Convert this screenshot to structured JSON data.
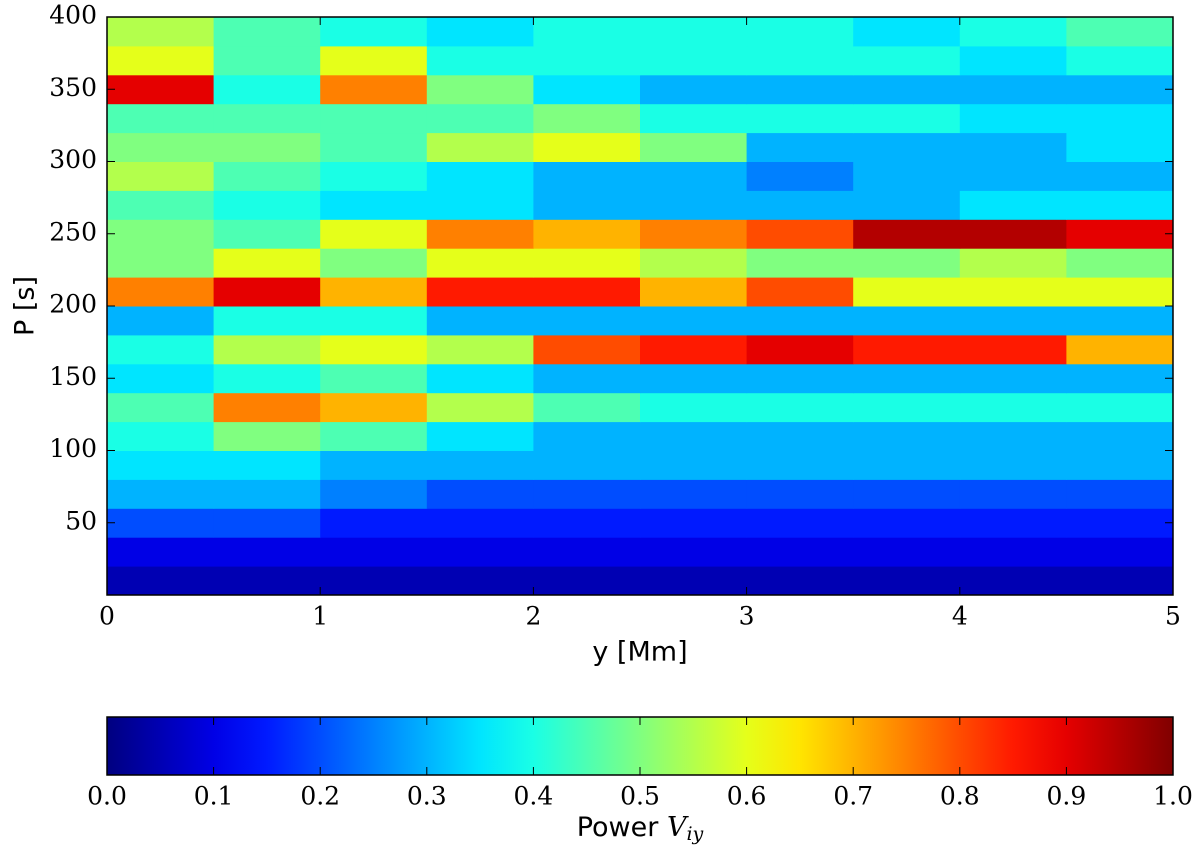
{
  "chart_data": {
    "type": "heatmap",
    "xlabel": "y [Mm]",
    "ylabel": "P [s]",
    "xlim": [
      0,
      5
    ],
    "xticks": [
      0,
      1,
      2,
      3,
      4,
      5
    ],
    "ylim": [
      0,
      400
    ],
    "yticks": [
      50,
      100,
      150,
      200,
      250,
      300,
      350,
      400
    ],
    "colormap": "jet",
    "x_bins": [
      0,
      0.5,
      1,
      1.5,
      2,
      2.5,
      3,
      3.5,
      4,
      4.5,
      5
    ],
    "y_bins": [
      0,
      20,
      40,
      60,
      80,
      100,
      120,
      140,
      160,
      180,
      200,
      220,
      240,
      260,
      280,
      300,
      320,
      340,
      360,
      380,
      400
    ],
    "z": [
      [
        0.05,
        0.05,
        0.05,
        0.05,
        0.05,
        0.05,
        0.05,
        0.05,
        0.05,
        0.05
      ],
      [
        0.1,
        0.1,
        0.1,
        0.1,
        0.1,
        0.1,
        0.1,
        0.1,
        0.1,
        0.1
      ],
      [
        0.2,
        0.2,
        0.15,
        0.15,
        0.15,
        0.15,
        0.15,
        0.15,
        0.15,
        0.15
      ],
      [
        0.3,
        0.3,
        0.25,
        0.2,
        0.2,
        0.2,
        0.2,
        0.2,
        0.2,
        0.2
      ],
      [
        0.35,
        0.35,
        0.3,
        0.3,
        0.3,
        0.3,
        0.3,
        0.3,
        0.3,
        0.3
      ],
      [
        0.4,
        0.5,
        0.45,
        0.35,
        0.3,
        0.3,
        0.3,
        0.3,
        0.3,
        0.3
      ],
      [
        0.45,
        0.75,
        0.7,
        0.55,
        0.45,
        0.4,
        0.4,
        0.4,
        0.4,
        0.4
      ],
      [
        0.35,
        0.4,
        0.45,
        0.35,
        0.3,
        0.3,
        0.3,
        0.3,
        0.3,
        0.3
      ],
      [
        0.4,
        0.55,
        0.6,
        0.55,
        0.8,
        0.85,
        0.9,
        0.85,
        0.85,
        0.7
      ],
      [
        0.3,
        0.4,
        0.4,
        0.3,
        0.3,
        0.3,
        0.3,
        0.3,
        0.3,
        0.3
      ],
      [
        0.75,
        0.9,
        0.7,
        0.85,
        0.85,
        0.7,
        0.8,
        0.6,
        0.6,
        0.6
      ],
      [
        0.5,
        0.6,
        0.5,
        0.6,
        0.6,
        0.55,
        0.5,
        0.5,
        0.55,
        0.5
      ],
      [
        0.5,
        0.45,
        0.6,
        0.75,
        0.7,
        0.75,
        0.8,
        0.95,
        0.95,
        0.9
      ],
      [
        0.45,
        0.4,
        0.35,
        0.35,
        0.3,
        0.3,
        0.3,
        0.3,
        0.35,
        0.35
      ],
      [
        0.55,
        0.45,
        0.4,
        0.35,
        0.3,
        0.3,
        0.25,
        0.3,
        0.3,
        0.3
      ],
      [
        0.5,
        0.5,
        0.45,
        0.55,
        0.6,
        0.5,
        0.3,
        0.3,
        0.3,
        0.35
      ],
      [
        0.45,
        0.45,
        0.45,
        0.45,
        0.5,
        0.4,
        0.4,
        0.4,
        0.35,
        0.35
      ],
      [
        0.9,
        0.4,
        0.75,
        0.5,
        0.35,
        0.3,
        0.3,
        0.3,
        0.3,
        0.3
      ],
      [
        0.6,
        0.45,
        0.6,
        0.4,
        0.4,
        0.4,
        0.4,
        0.4,
        0.35,
        0.4
      ],
      [
        0.55,
        0.45,
        0.4,
        0.35,
        0.4,
        0.4,
        0.4,
        0.35,
        0.4,
        0.45
      ]
    ],
    "colorbar": {
      "label": "Power",
      "symbol": "V",
      "subscript": "iy",
      "lim": [
        0,
        1
      ],
      "ticks": [
        {
          "value": 0,
          "label": "0.0"
        },
        {
          "value": 0.1,
          "label": "0.1"
        },
        {
          "value": 0.2,
          "label": "0.2"
        },
        {
          "value": 0.3,
          "label": "0.3"
        },
        {
          "value": 0.4,
          "label": "0.4"
        },
        {
          "value": 0.5,
          "label": "0.5"
        },
        {
          "value": 0.6,
          "label": "0.6"
        },
        {
          "value": 0.7,
          "label": "0.7"
        },
        {
          "value": 0.8,
          "label": "0.8"
        },
        {
          "value": 0.9,
          "label": "0.9"
        },
        {
          "value": 1,
          "label": "1.0"
        }
      ]
    }
  }
}
